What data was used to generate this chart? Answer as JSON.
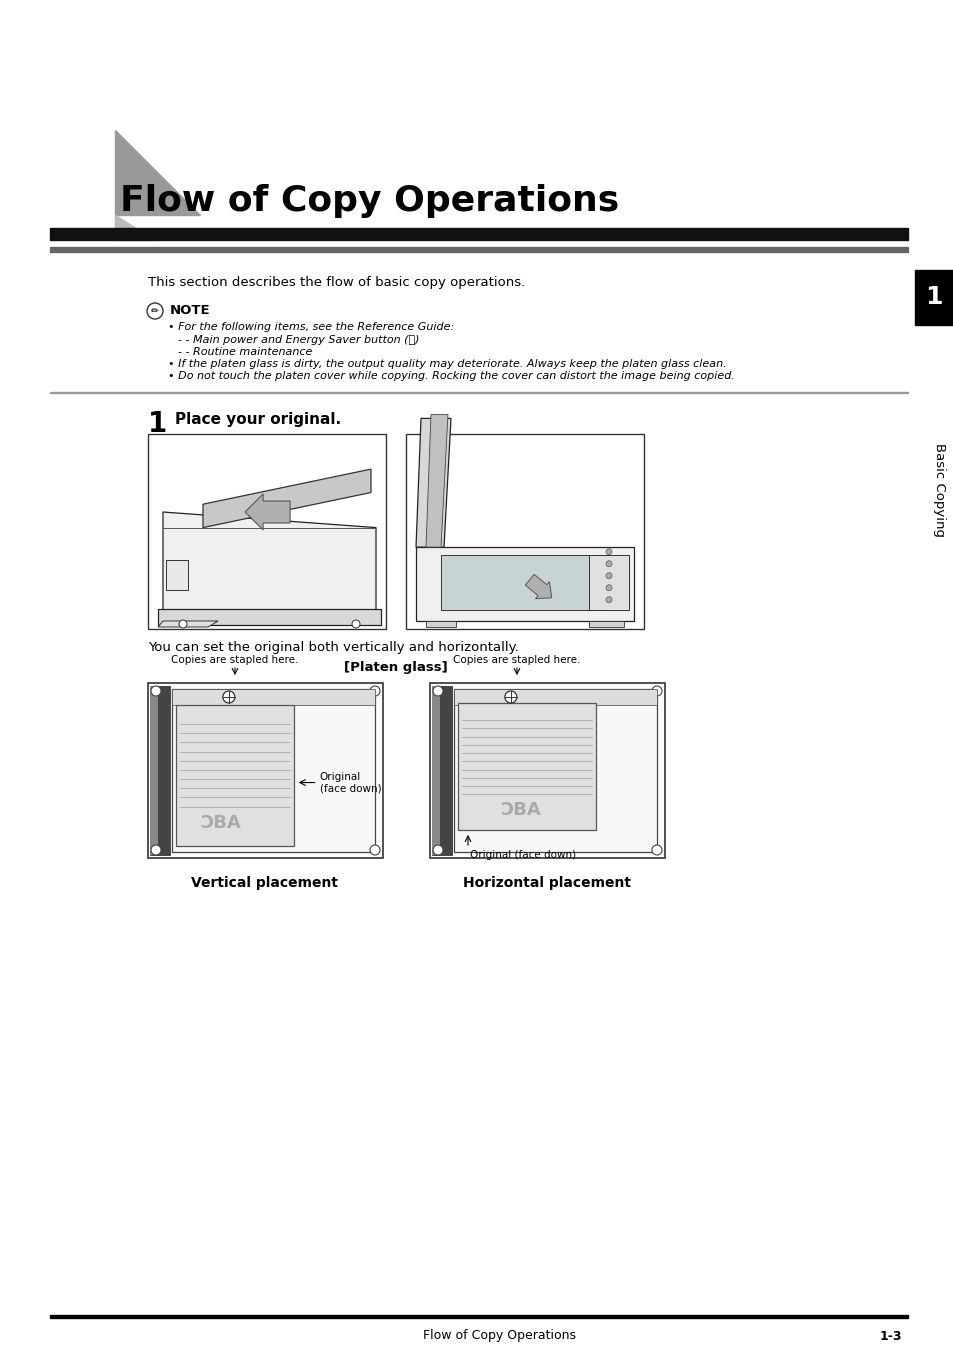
{
  "bg_color": "#ffffff",
  "title": "Flow of Copy Operations",
  "title_fontsize": 26,
  "section_intro": "This section describes the flow of basic copy operations.",
  "note_title": "NOTE",
  "note_line1": "For the following items, see the Reference Guide:",
  "note_line2": "- Main power and Energy Saver button (ⓢ)",
  "note_line3": "- Routine maintenance",
  "note_line4": "If the platen glass is dirty, the output quality may deteriorate. Always keep the platen glass clean.",
  "note_line5": "Do not touch the platen cover while copying. Rocking the cover can distort the image being copied.",
  "step_number": "1",
  "step_text": "Place your original.",
  "caption_both": "You can set the original both vertically and horizontally.",
  "platen_glass_label": "[Platen glass]",
  "copies_stapled": "Copies are stapled here.",
  "orig_label_v1": "← Original",
  "orig_label_v2": "(face down)",
  "orig_label_h": "Original (face down)",
  "vertical_placement": "Vertical placement",
  "horizontal_placement": "Horizontal placement",
  "footer_text": "Flow of Copy Operations",
  "footer_page": "1-3",
  "side_tab_num": "1",
  "side_tab_text": "Basic Copying",
  "tri_color1": "#999999",
  "tri_color2": "#bbbbbb",
  "bar_color": "#111111",
  "bar_color2": "#666666"
}
